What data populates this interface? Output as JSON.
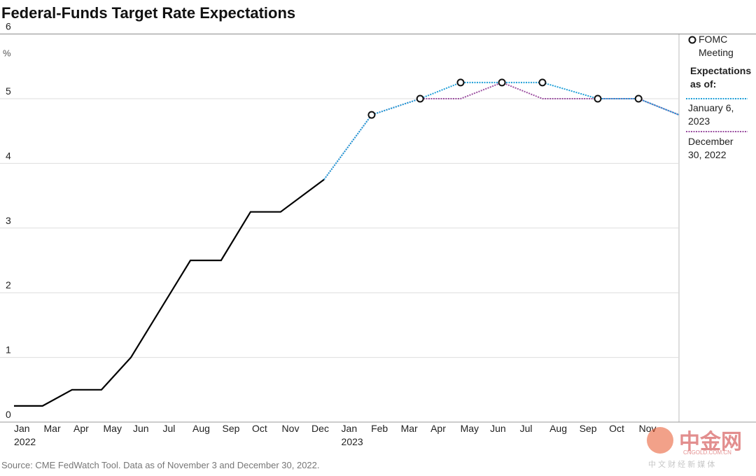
{
  "chart_data": {
    "type": "line",
    "title": "Federal-Funds Target Rate Expectations",
    "source": "Source: CME FedWatch Tool. Data as of November 3 and December 30, 2022.",
    "xlim": [
      0,
      22.35
    ],
    "xticks": [
      {
        "value": 0,
        "label": "Jan"
      },
      {
        "value": 1,
        "label": "Mar"
      },
      {
        "value": 2,
        "label": "Apr"
      },
      {
        "value": 3,
        "label": "May"
      },
      {
        "value": 4,
        "label": "Jun"
      },
      {
        "value": 5,
        "label": "Jul"
      },
      {
        "value": 6,
        "label": "Aug"
      },
      {
        "value": 7,
        "label": "Sep"
      },
      {
        "value": 8,
        "label": "Oct"
      },
      {
        "value": 9,
        "label": "Nov"
      },
      {
        "value": 10,
        "label": "Dec"
      },
      {
        "value": 11,
        "label": "Jan"
      },
      {
        "value": 12,
        "label": "Feb"
      },
      {
        "value": 13,
        "label": "Mar"
      },
      {
        "value": 14,
        "label": "Apr"
      },
      {
        "value": 15,
        "label": "May"
      },
      {
        "value": 16,
        "label": "Jun"
      },
      {
        "value": 17,
        "label": "Jul"
      },
      {
        "value": 18,
        "label": "Aug"
      },
      {
        "value": 19,
        "label": "Sep"
      },
      {
        "value": 20,
        "label": "Oct"
      },
      {
        "value": 21,
        "label": "Nov"
      }
    ],
    "x_year_labels": [
      {
        "value": 0,
        "label": "2022"
      },
      {
        "value": 11,
        "label": "2023"
      }
    ],
    "ylim": [
      0,
      6
    ],
    "yticks": [
      0,
      1,
      2,
      3,
      4,
      5,
      6
    ],
    "y_unit": "%",
    "grid": true,
    "legend_title": "Expectations as of:",
    "series": [
      {
        "color": "#000000",
        "x": [
          0,
          0.96,
          1.95,
          2.94,
          3.93,
          5.93,
          6.96,
          7.95,
          8.96,
          10.42
        ],
        "values": [
          0.25,
          0.25,
          0.5,
          0.5,
          1,
          2.5,
          2.5,
          3.25,
          3.25,
          3.75
        ]
      },
      {
        "name": "December 30, 2022",
        "color": "#9b4fa0",
        "dashed": true,
        "x": [
          10.42,
          12.02,
          13.65,
          15.01,
          16.4,
          17.76,
          19.62,
          20.99,
          22.35
        ],
        "values": [
          3.75,
          4.75,
          5,
          5,
          5.25,
          5,
          5,
          5,
          4.75
        ]
      },
      {
        "name": "January 6, 2023",
        "color": "#1f9fd8",
        "dashed": true,
        "x": [
          10.42,
          12.02,
          13.65,
          15.01,
          16.4,
          17.76,
          19.62,
          20.99,
          22.35
        ],
        "values": [
          3.75,
          4.75,
          5,
          5.25,
          5.25,
          5.25,
          5,
          5,
          4.75
        ]
      }
    ],
    "fomc": {
      "name": "FOMC Meeting",
      "x": [
        12.02,
        13.65,
        15.01,
        16.4,
        17.76,
        19.62,
        20.99
      ],
      "values": [
        4.75,
        5,
        5.25,
        5.25,
        5.25,
        5,
        5
      ]
    },
    "watermark": {
      "logo": "中金网",
      "domain": "CNGOLD.COM.CN",
      "tagline": "中 文 财 经 新 媒 体"
    }
  }
}
